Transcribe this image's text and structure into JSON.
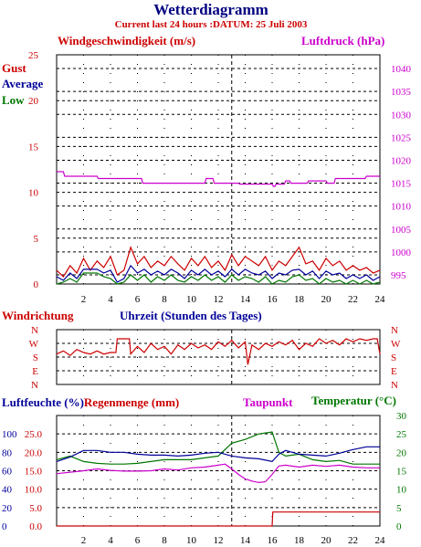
{
  "title": "Wetterdiagramm",
  "subtitle": "Current last 24 hours :DATUM: 25 Juli 2003",
  "colors": {
    "title": "#000080",
    "red": "#cc0000",
    "blue": "#000099",
    "green": "#007700",
    "magenta": "#cc00cc",
    "grid": "#000000"
  },
  "chart_data": [
    {
      "type": "line",
      "name": "wind-pressure",
      "ylabel": "Windgeschwindigkeit (m/s)",
      "y2label": "Luftdruck (hPa)",
      "legend": [
        "Gust",
        "Average",
        "Low"
      ],
      "legend_placement": "top-left",
      "xlim": [
        0,
        24
      ],
      "ylim": [
        0,
        25
      ],
      "y2lim": [
        993,
        1043
      ],
      "xticks": [
        "2",
        "4",
        "6",
        "8",
        "10",
        "12",
        "14",
        "16",
        "18",
        "20",
        "22",
        "24"
      ],
      "yticks": [
        "0",
        "5",
        "10",
        "15",
        "20",
        "25"
      ],
      "y2ticks": [
        "995",
        "1000",
        "1005",
        "1010",
        "1015",
        "1020",
        "1025",
        "1030",
        "1035",
        "1040"
      ],
      "grid": true,
      "series": [
        {
          "name": "Luftdruck",
          "x": [
            0,
            0.5,
            0.6,
            3,
            3.1,
            6.3,
            6.4,
            11,
            11.1,
            11.6,
            11.7,
            13.5,
            13.6,
            16,
            16.1,
            16.2,
            16.3,
            16.9,
            17,
            17.3,
            17.4,
            18.6,
            18.7,
            20,
            20.1,
            20.6,
            20.7,
            22.9,
            23,
            24
          ],
          "y": [
            1017.5,
            1017.5,
            1016.5,
            1016.5,
            1016,
            1016,
            1015,
            1015,
            1016,
            1016,
            1015,
            1015,
            1014.8,
            1014.8,
            1014.3,
            1014.3,
            1014.8,
            1014.8,
            1015.5,
            1015.5,
            1015,
            1015,
            1015.5,
            1015.5,
            1015,
            1015,
            1016,
            1016,
            1016.5,
            1016.5
          ]
        },
        {
          "name": "Gust",
          "x": [
            0,
            0.5,
            1,
            1.5,
            2,
            2.5,
            3,
            3.5,
            4,
            4.5,
            5,
            5.5,
            6,
            6.5,
            7,
            7.5,
            8,
            8.5,
            9,
            9.5,
            10,
            10.5,
            11,
            11.5,
            12,
            12.5,
            13,
            13.5,
            14,
            14.5,
            15,
            15.5,
            16,
            16.5,
            17,
            17.5,
            18,
            18.5,
            19,
            19.5,
            20,
            20.5,
            21,
            21.5,
            22,
            22.5,
            23,
            23.5,
            24
          ],
          "y": [
            1.5,
            0.8,
            2,
            1.2,
            2.8,
            1.5,
            2.5,
            1.8,
            3,
            1,
            1.5,
            4,
            2.2,
            3,
            1.8,
            2.5,
            2,
            3,
            2.2,
            1.5,
            2.8,
            2,
            3,
            1.8,
            2.5,
            1.5,
            3.2,
            2,
            3,
            2.5,
            2,
            3,
            1.5,
            2.5,
            2,
            3,
            4,
            2.2,
            2.5,
            1.5,
            2.8,
            2,
            2.5,
            1.5,
            2,
            1.5,
            1.8,
            1.2,
            1.5
          ]
        },
        {
          "name": "Average",
          "x": [
            0,
            0.5,
            1,
            1.5,
            2,
            2.5,
            3,
            3.5,
            4,
            4.5,
            5,
            5.5,
            6,
            6.5,
            7,
            7.5,
            8,
            8.5,
            9,
            9.5,
            10,
            10.5,
            11,
            11.5,
            12,
            12.5,
            13,
            13.5,
            14,
            14.5,
            15,
            15.5,
            16,
            16.5,
            17,
            17.5,
            18,
            18.5,
            19,
            19.5,
            20,
            20.5,
            21,
            21.5,
            22,
            22.5,
            23,
            23.5,
            24
          ],
          "y": [
            0.8,
            0.4,
            1.2,
            0.6,
            1.6,
            1.6,
            1.6,
            1.2,
            1.5,
            0.2,
            0.6,
            2,
            1.2,
            1.6,
            1,
            1.4,
            1,
            1.6,
            1.2,
            0.6,
            1.5,
            1,
            1.6,
            1,
            1.4,
            0.8,
            1.6,
            1,
            1.6,
            1.2,
            1,
            1.4,
            0.6,
            1.2,
            1,
            1.5,
            1.6,
            1,
            1.4,
            0.6,
            1.4,
            1,
            1.2,
            0.6,
            1,
            0.6,
            1,
            0.4,
            0.8
          ]
        },
        {
          "name": "Low",
          "x": [
            0,
            0.5,
            1,
            1.5,
            2,
            2.5,
            3,
            3.5,
            4,
            4.5,
            5,
            5.5,
            6,
            6.5,
            7,
            7.5,
            8,
            8.5,
            9,
            9.5,
            10,
            10.5,
            11,
            11.5,
            12,
            12.5,
            13,
            13.5,
            14,
            14.5,
            15,
            15.5,
            16,
            16.5,
            17,
            17.5,
            18,
            18.5,
            19,
            19.5,
            20,
            20.5,
            21,
            21.5,
            22,
            22.5,
            23,
            23.5,
            24
          ],
          "y": [
            0,
            0.2,
            0.6,
            0.2,
            1.2,
            1.2,
            1.2,
            0.8,
            0.6,
            0,
            0.2,
            1,
            0.4,
            1,
            0.2,
            0.8,
            0.4,
            1,
            0.4,
            0.2,
            0.8,
            0.4,
            1,
            0.4,
            0.8,
            0.2,
            1,
            0.4,
            0.8,
            0.6,
            0.2,
            0.8,
            0,
            0.4,
            0.2,
            0.8,
            1,
            0.4,
            0.6,
            0,
            0.6,
            0.2,
            0.4,
            0,
            0.4,
            0,
            0.4,
            0,
            0.2
          ]
        }
      ]
    },
    {
      "type": "line",
      "name": "wind-direction",
      "ylabel": "Windrichtung",
      "xlabel": "Uhrzeit (Stunden des Tages)",
      "xlim": [
        0,
        24
      ],
      "yticks": [
        "N",
        "W",
        "S",
        "E",
        "N"
      ],
      "grid": true,
      "series": [
        {
          "name": "Windrichtung",
          "x": [
            0,
            0.5,
            1,
            1.5,
            2,
            2.5,
            3,
            3.5,
            4,
            4.4,
            4.5,
            5,
            5.4,
            5.5,
            6,
            6.5,
            7,
            7.5,
            8,
            8.5,
            9,
            9.5,
            10,
            10.5,
            11,
            11.5,
            12,
            12.5,
            13,
            13.5,
            14,
            14.2,
            14.5,
            15,
            15.5,
            16,
            16.5,
            17,
            17.5,
            18,
            18.5,
            19,
            19.5,
            20,
            20.5,
            21,
            21.5,
            22,
            22.5,
            23,
            23.5,
            23.8,
            24
          ],
          "y": [
            200,
            220,
            190,
            230,
            210,
            200,
            220,
            200,
            210,
            210,
            300,
            300,
            300,
            200,
            250,
            210,
            270,
            230,
            250,
            200,
            260,
            230,
            270,
            240,
            260,
            230,
            280,
            250,
            290,
            240,
            280,
            130,
            260,
            230,
            270,
            250,
            280,
            260,
            290,
            230,
            270,
            250,
            300,
            270,
            290,
            260,
            300,
            280,
            300,
            290,
            300,
            300,
            200
          ]
        }
      ]
    },
    {
      "type": "line",
      "name": "humidity-rain-temperature",
      "ylabel": "Luftfeuchte (%)",
      "ylabel_rain": "Regenmenge (mm)",
      "y2label_dew": "Taupunkt",
      "y2label": "Temperatur (°C)",
      "xlim": [
        0,
        24
      ],
      "ylim": [
        0,
        120
      ],
      "y2lim": [
        0,
        30
      ],
      "xticks": [
        "2",
        "4",
        "6",
        "8",
        "10",
        "12",
        "14",
        "16",
        "18",
        "20",
        "22",
        "24"
      ],
      "yticks_humidity": [
        "0",
        "20",
        "40",
        "60",
        "80",
        "100"
      ],
      "yticks_rain": [
        "0.0",
        "5.0",
        "10.0",
        "15.0",
        "20.0",
        "25.0"
      ],
      "y2ticks": [
        "0",
        "5",
        "10",
        "15",
        "20",
        "25",
        "30"
      ],
      "grid": true,
      "series": [
        {
          "name": "Luftfeuchte",
          "x": [
            0,
            1,
            2,
            3,
            4,
            5,
            6,
            7,
            8,
            9,
            10,
            11,
            12,
            13,
            14,
            15,
            16,
            16.5,
            17,
            18,
            19,
            20,
            21,
            22,
            23,
            24
          ],
          "y": [
            70,
            75,
            82,
            82,
            80,
            80,
            78,
            77,
            77,
            76,
            77,
            79,
            80,
            76,
            74,
            73,
            70,
            78,
            82,
            78,
            77,
            76,
            79,
            83,
            86,
            86
          ]
        },
        {
          "name": "Temperatur",
          "x": [
            0,
            1,
            2,
            3,
            4,
            5,
            6,
            7,
            8,
            9,
            10,
            11,
            12,
            13,
            14,
            15,
            16,
            16.5,
            17,
            18,
            19,
            20,
            21,
            22,
            23,
            24
          ],
          "y": [
            18,
            19,
            17.5,
            17,
            16.8,
            16.8,
            17,
            17.5,
            18,
            18,
            18,
            18.5,
            19,
            22.5,
            23.5,
            25,
            25.5,
            20,
            19,
            19.5,
            18,
            17.5,
            17.8,
            16.8,
            16.8,
            16.8
          ]
        },
        {
          "name": "Taupunkt",
          "x": [
            0,
            1,
            2,
            3,
            4,
            5,
            6,
            7,
            8,
            9,
            10,
            11,
            12,
            12.5,
            13,
            13.5,
            14,
            14.5,
            15,
            15.5,
            16,
            16.5,
            17,
            18,
            19,
            20,
            21,
            22,
            23,
            24
          ],
          "y": [
            14.2,
            14.6,
            15,
            15.5,
            15.1,
            14.9,
            14.9,
            15,
            15.5,
            15.2,
            15.8,
            16,
            16.5,
            16.8,
            15.5,
            14,
            12.8,
            12.2,
            11.8,
            12,
            14,
            16.3,
            16.5,
            16,
            16.5,
            16.2,
            16.5,
            16,
            15.8,
            15.8
          ]
        },
        {
          "name": "Regenmenge",
          "x": [
            0,
            16,
            16.05,
            24
          ],
          "y": [
            0,
            0,
            3.8,
            3.8
          ]
        }
      ]
    }
  ]
}
